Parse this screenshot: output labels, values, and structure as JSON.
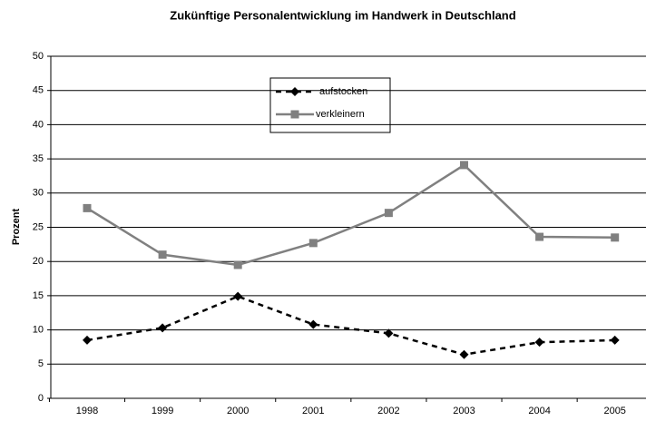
{
  "chart_data": {
    "type": "line",
    "title": "Zukünftige Personalentwicklung im Handwerk in Deutschland",
    "y_label": "Prozent",
    "categories": [
      "1998",
      "1999",
      "2000",
      "2001",
      "2002",
      "2003",
      "2004",
      "2005"
    ],
    "series": [
      {
        "name": "aufstocken",
        "color": "#000000",
        "values": [
          8.5,
          10.3,
          14.9,
          10.8,
          9.5,
          6.4,
          8.2,
          8.5
        ]
      },
      {
        "name": "verkleinern",
        "color": "#808080",
        "values": [
          27.8,
          21.0,
          19.5,
          22.7,
          27.1,
          34.1,
          23.6,
          23.5
        ]
      }
    ],
    "ylim": [
      0,
      50
    ],
    "yticks": [
      0,
      5,
      10,
      15,
      20,
      25,
      30,
      35,
      40,
      45,
      50
    ],
    "grid": true,
    "legend": "top"
  }
}
